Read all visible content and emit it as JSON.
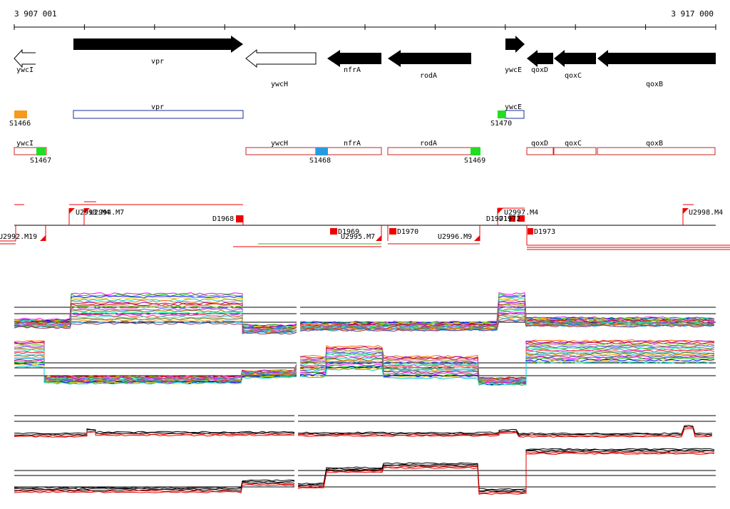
{
  "axis": {
    "start_label": "3 907 001",
    "end_label": "3 917 000",
    "start_bp": 3907001,
    "end_bp": 3917000
  },
  "colors": {
    "gene_fill": "#000000",
    "gene_outline": "#000000",
    "cds_box_blue": "#1a2d9c",
    "cds_box_red": "#cc2222",
    "probe_orange": "#f59a1a",
    "probe_green": "#22dd22",
    "probe_blue": "#2a9ae0",
    "segment_red": "#ee0000",
    "baseline": "#000000",
    "trace_dark": "#000000",
    "trace_red": "#dd0000",
    "trace_green": "#22bb22"
  },
  "genes": [
    {
      "name": "ywcI",
      "strand": "-",
      "filled": false
    },
    {
      "name": "vpr",
      "strand": "+",
      "filled": true
    },
    {
      "name": "ywcH",
      "strand": "-",
      "filled": false
    },
    {
      "name": "nfrA",
      "strand": "-",
      "filled": true
    },
    {
      "name": "rodA",
      "strand": "-",
      "filled": true
    },
    {
      "name": "ywcE",
      "strand": "+",
      "filled": true
    },
    {
      "name": "qoxD",
      "strand": "-",
      "filled": true
    },
    {
      "name": "qoxC",
      "strand": "-",
      "filled": true
    },
    {
      "name": "qoxB",
      "strand": "-",
      "filled": true
    }
  ],
  "cds_boxes_top": [
    {
      "name": "vpr",
      "color": "blue"
    },
    {
      "name": "ywcE",
      "color": "blue"
    }
  ],
  "cds_boxes_bottom": [
    {
      "name": "ywcI"
    },
    {
      "name": "ywcH"
    },
    {
      "name": "nfrA"
    },
    {
      "name": "rodA"
    },
    {
      "name": "qoxD"
    },
    {
      "name": "qoxC"
    },
    {
      "name": "qoxB"
    }
  ],
  "probes": [
    {
      "name": "S1466",
      "color": "orange"
    },
    {
      "name": "S1467",
      "color": "green"
    },
    {
      "name": "S1468",
      "color": "blue"
    },
    {
      "name": "S1469",
      "color": "green"
    },
    {
      "name": "S1470",
      "color": "green"
    }
  ],
  "segments": [
    {
      "name": "U2992.M19"
    },
    {
      "name": "U2993.M4"
    },
    {
      "name": "U2994.M7"
    },
    {
      "name": "D1968"
    },
    {
      "name": "D1969"
    },
    {
      "name": "U2995.M7"
    },
    {
      "name": "D1970"
    },
    {
      "name": "U2996.M9"
    },
    {
      "name": "D1971"
    },
    {
      "name": "D1972"
    },
    {
      "name": "U2997.M4"
    },
    {
      "name": "D1973"
    },
    {
      "name": "U2998.M4"
    }
  ]
}
